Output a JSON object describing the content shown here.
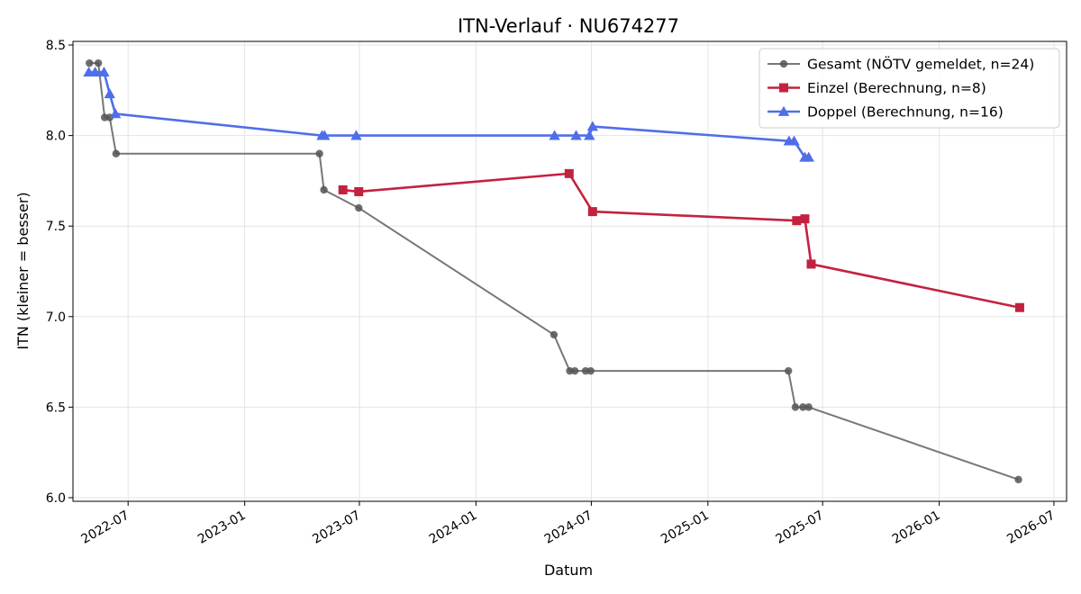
{
  "chart_data": {
    "type": "line",
    "title": "ITN-Verlauf · NU674277",
    "xlabel": "Datum",
    "ylabel": "ITN  (kleiner = besser)",
    "ylim": [
      5.98,
      8.52
    ],
    "xlim": [
      "2022-04-05",
      "2026-07-21"
    ],
    "grid": true,
    "legend_position": "top-right",
    "x_ticks": [
      "2022-07",
      "2023-01",
      "2023-07",
      "2024-01",
      "2024-07",
      "2025-01",
      "2025-07",
      "2026-01",
      "2026-07"
    ],
    "y_ticks": [
      "6.0",
      "6.5",
      "7.0",
      "7.5",
      "8.0",
      "8.5"
    ],
    "series": [
      {
        "name": "Gesamt (NÖTV gemeldet, n=24)",
        "color": "#555555",
        "marker": "circle",
        "points": [
          {
            "x": "2022-05-01",
            "y": 8.4
          },
          {
            "x": "2022-05-15",
            "y": 8.4
          },
          {
            "x": "2022-05-25",
            "y": 8.1
          },
          {
            "x": "2022-06-02",
            "y": 8.1
          },
          {
            "x": "2022-06-12",
            "y": 7.9
          },
          {
            "x": "2023-04-29",
            "y": 7.9
          },
          {
            "x": "2023-05-06",
            "y": 7.7
          },
          {
            "x": "2023-06-30",
            "y": 7.6
          },
          {
            "x": "2024-05-03",
            "y": 6.9
          },
          {
            "x": "2024-05-28",
            "y": 6.7
          },
          {
            "x": "2024-06-05",
            "y": 6.7
          },
          {
            "x": "2024-06-22",
            "y": 6.7
          },
          {
            "x": "2024-06-30",
            "y": 6.7
          },
          {
            "x": "2025-05-08",
            "y": 6.7
          },
          {
            "x": "2025-05-19",
            "y": 6.5
          },
          {
            "x": "2025-05-31",
            "y": 6.5
          },
          {
            "x": "2025-06-09",
            "y": 6.5
          },
          {
            "x": "2026-05-06",
            "y": 6.1
          }
        ]
      },
      {
        "name": "Einzel (Berechnung, n=8)",
        "color": "#c3223f",
        "marker": "square",
        "points": [
          {
            "x": "2023-06-05",
            "y": 7.7
          },
          {
            "x": "2023-06-30",
            "y": 7.69
          },
          {
            "x": "2024-05-27",
            "y": 7.79
          },
          {
            "x": "2024-07-03",
            "y": 7.58
          },
          {
            "x": "2025-05-21",
            "y": 7.53
          },
          {
            "x": "2025-06-03",
            "y": 7.54
          },
          {
            "x": "2025-06-13",
            "y": 7.29
          },
          {
            "x": "2026-05-08",
            "y": 7.05
          }
        ]
      },
      {
        "name": "Doppel (Berechnung, n=16)",
        "color": "#4f6ee9",
        "marker": "triangle",
        "points": [
          {
            "x": "2022-04-30",
            "y": 8.35
          },
          {
            "x": "2022-05-10",
            "y": 8.35
          },
          {
            "x": "2022-05-24",
            "y": 8.35
          },
          {
            "x": "2022-06-02",
            "y": 8.23
          },
          {
            "x": "2022-06-11",
            "y": 8.12
          },
          {
            "x": "2023-05-03",
            "y": 8.0
          },
          {
            "x": "2023-05-07",
            "y": 8.0
          },
          {
            "x": "2023-06-26",
            "y": 8.0
          },
          {
            "x": "2024-05-04",
            "y": 8.0
          },
          {
            "x": "2024-06-07",
            "y": 8.0
          },
          {
            "x": "2024-06-28",
            "y": 8.0
          },
          {
            "x": "2024-07-03",
            "y": 8.05
          },
          {
            "x": "2025-05-09",
            "y": 7.97
          },
          {
            "x": "2025-05-17",
            "y": 7.97
          },
          {
            "x": "2025-06-03",
            "y": 7.88
          },
          {
            "x": "2025-06-09",
            "y": 7.88
          }
        ]
      }
    ]
  }
}
